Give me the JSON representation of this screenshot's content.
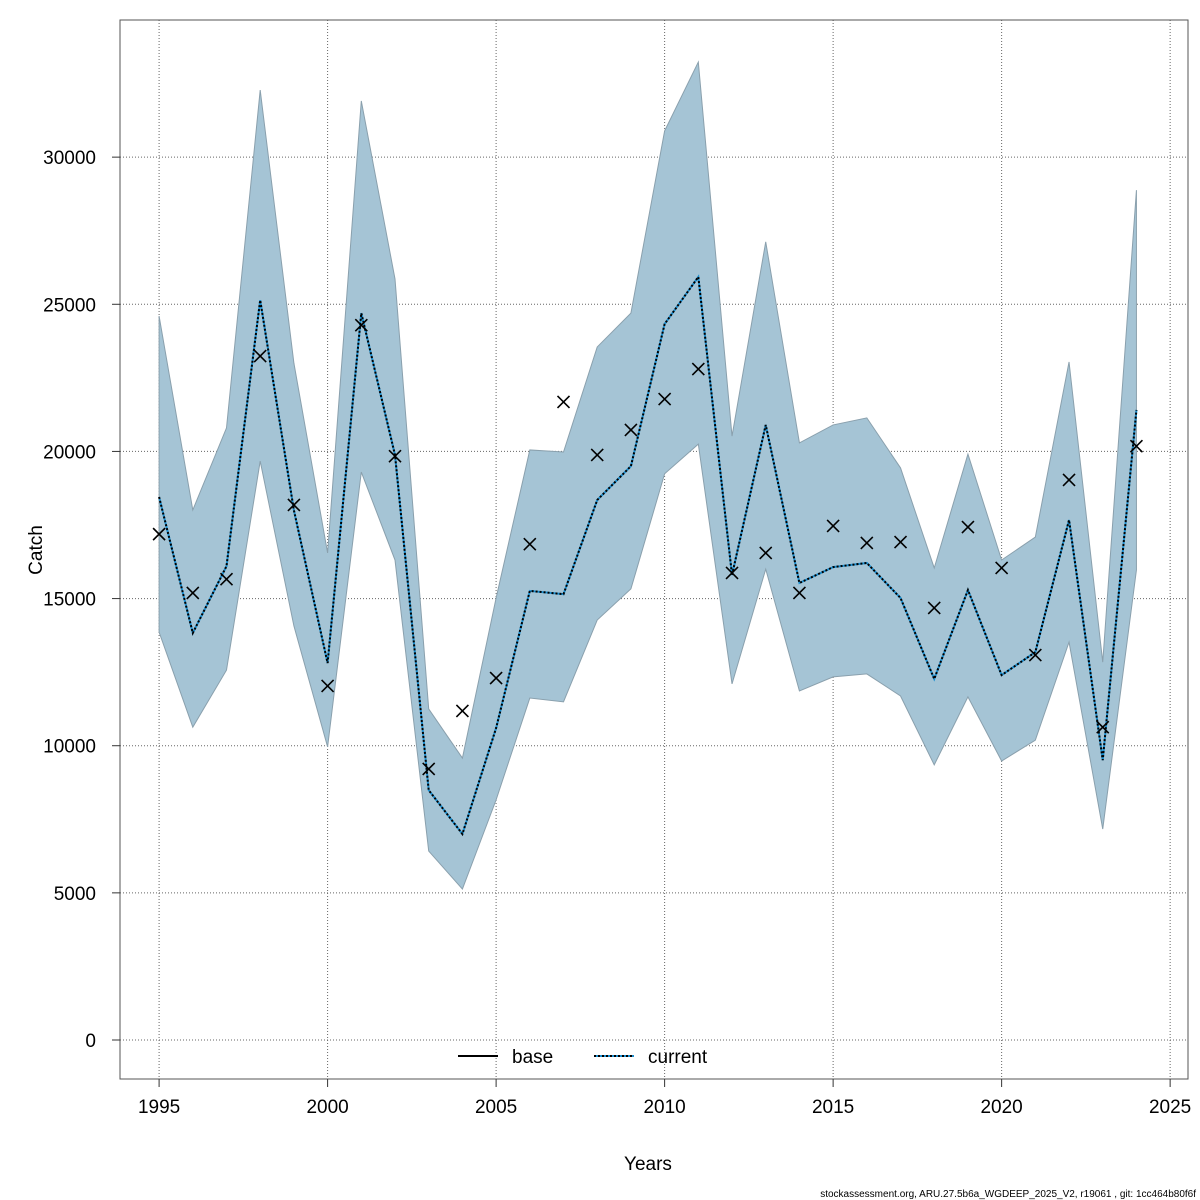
{
  "chart_data": {
    "type": "line",
    "title": "",
    "xlabel": "Years",
    "ylabel": "Catch",
    "xlim": [
      1993.84,
      2025.53
    ],
    "ylim": [
      -1325,
      34660
    ],
    "grid": true,
    "x_ticks": [
      1995,
      2000,
      2005,
      2010,
      2015,
      2020,
      2025
    ],
    "y_ticks": [
      0,
      5000,
      10000,
      15000,
      20000,
      25000,
      30000
    ],
    "x": [
      1995,
      1996,
      1997,
      1998,
      1999,
      2000,
      2001,
      2002,
      2003,
      2004,
      2005,
      2006,
      2007,
      2008,
      2009,
      2010,
      2011,
      2012,
      2013,
      2014,
      2015,
      2016,
      2017,
      2018,
      2019,
      2020,
      2021,
      2022,
      2023,
      2024
    ],
    "observed": {
      "name": "observed catch",
      "values": [
        17190,
        15190,
        15660,
        23240,
        18180,
        12030,
        24290,
        19840,
        9210,
        11180,
        12300,
        16850,
        21680,
        19880,
        20730,
        21780,
        22800,
        15870,
        16550,
        15190,
        17470,
        16890,
        16920,
        14680,
        17430,
        16040,
        13080,
        19030,
        10630,
        20180
      ]
    },
    "series": [
      {
        "name": "base",
        "color": "#000000",
        "style": "solid",
        "values": [
          18450,
          13830,
          16100,
          25140,
          18000,
          12810,
          24700,
          19880,
          8490,
          7000,
          10600,
          15260,
          15150,
          18350,
          19500,
          24330,
          25930,
          15800,
          20900,
          15530,
          16070,
          16210,
          15020,
          12270,
          15290,
          12400,
          13180,
          17670,
          9510,
          21410
        ]
      },
      {
        "name": "current",
        "color": "#1b8fd0",
        "style": "dotted",
        "values": [
          18450,
          13830,
          16100,
          25140,
          18000,
          12810,
          24700,
          19880,
          8490,
          7000,
          10600,
          15260,
          15150,
          18350,
          19500,
          24330,
          25930,
          15800,
          20900,
          15530,
          16070,
          16210,
          15020,
          12270,
          15290,
          12400,
          13180,
          17670,
          9510,
          21410
        ]
      }
    ],
    "band": {
      "color": "#a5c4d5",
      "upper": [
        24600,
        18010,
        20800,
        32280,
        23000,
        16550,
        31910,
        25860,
        11250,
        9580,
        15020,
        20050,
        19980,
        23550,
        24700,
        30890,
        33230,
        20520,
        27120,
        20290,
        20900,
        21140,
        19440,
        16040,
        19910,
        16310,
        17090,
        23040,
        12840,
        28880
      ],
      "lower": [
        13860,
        10630,
        12570,
        19670,
        14070,
        9960,
        19300,
        16310,
        6420,
        5130,
        8160,
        11620,
        11490,
        14270,
        15330,
        19240,
        20250,
        12100,
        16000,
        11860,
        12340,
        12440,
        11690,
        9350,
        11660,
        9480,
        10190,
        13520,
        7170,
        15970
      ]
    },
    "legend": {
      "placement": "bottom-center",
      "entries": [
        "base",
        "current"
      ]
    }
  },
  "footer": "stockassessment.org, ARU.27.5b6a_WGDEEP_2025_V2, r19061 , git: 1cc464b80f6f"
}
